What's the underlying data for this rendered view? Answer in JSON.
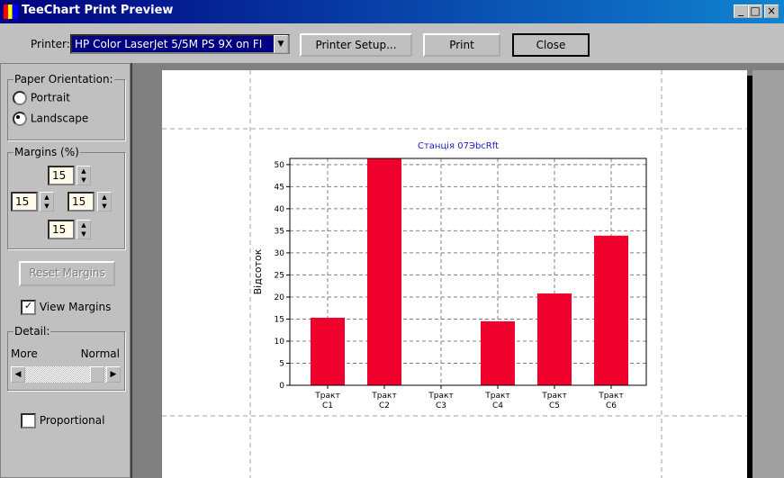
{
  "window": {
    "title": "TeeChart Print Preview"
  },
  "toolbar": {
    "printer_label": "Printer:",
    "printer_value": "HP Color LaserJet 5/5M PS 9X on FI",
    "printer_setup": "Printer Setup...",
    "print": "Print",
    "close": "Close"
  },
  "panel": {
    "orientation_title": "Paper Orientation:",
    "portrait": "Portrait",
    "landscape": "Landscape",
    "margins_title": "Margins (%)",
    "margin_top": "15",
    "margin_left": "15",
    "margin_right": "15",
    "margin_bottom": "15",
    "reset_margins": "Reset Margins",
    "view_margins": "View Margins",
    "detail_title": "Detail:",
    "detail_more": "More",
    "detail_normal": "Normal",
    "proportional": "Proportional"
  },
  "chart_data": {
    "type": "bar",
    "title": "Станція 07ЭbcRft",
    "y_label": "Відсоток",
    "categories": [
      [
        "Тракт",
        "C1"
      ],
      [
        "Тракт",
        "C2"
      ],
      [
        "Тракт",
        "C3"
      ],
      [
        "Тракт",
        "C4"
      ],
      [
        "Тракт",
        "C5"
      ],
      [
        "Тракт",
        "C6"
      ]
    ],
    "values": [
      15.3,
      51.4,
      0,
      14.5,
      20.8,
      33.9
    ],
    "color": "#f0002c",
    "ylim": [
      0,
      51.4
    ],
    "yticks": [
      0,
      5,
      10,
      15,
      20,
      25,
      30,
      35,
      40,
      45,
      50
    ],
    "grid": true
  }
}
